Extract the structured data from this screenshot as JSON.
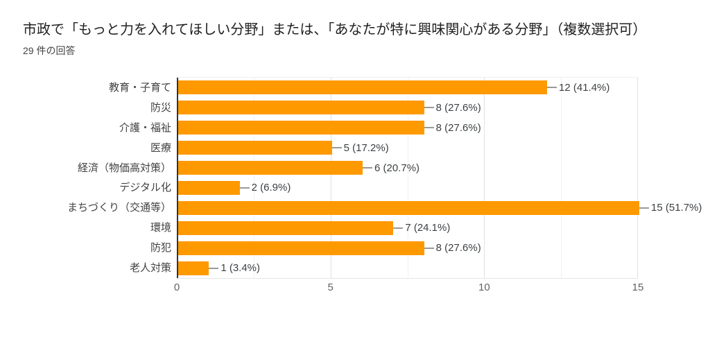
{
  "header": {
    "title": "市政で「もっと力を入れてほしい分野」または、「あなたが特に興味関心がある分野」（複数選択可）",
    "subtitle": "29 件の回答"
  },
  "chart_data": {
    "type": "bar",
    "orientation": "horizontal",
    "title": "市政で「もっと力を入れてほしい分野」または、「あなたが特に興味関心がある分野」（複数選択可）",
    "subtitle": "29 件の回答",
    "total_responses": 29,
    "categories": [
      "教育・子育て",
      "防災",
      "介護・福祉",
      "医療",
      "経済（物価高対策）",
      "デジタル化",
      "まちづくり（交通等）",
      "環境",
      "防犯",
      "老人対策"
    ],
    "values": [
      12,
      8,
      8,
      5,
      6,
      2,
      15,
      7,
      8,
      1
    ],
    "value_labels": [
      "12 (41.4%)",
      "8 (27.6%)",
      "8 (27.6%)",
      "5 (17.2%)",
      "6 (20.7%)",
      "2 (6.9%)",
      "15 (51.7%)",
      "7 (24.1%)",
      "8 (27.6%)",
      "1 (3.4%)"
    ],
    "xlim": [
      0,
      15
    ],
    "x_ticks": [
      0,
      5,
      10,
      15
    ],
    "minor_gridlines": [
      2.5,
      7.5,
      12.5
    ],
    "grid": true,
    "legend": "none",
    "colors": {
      "bar": "#FF9900",
      "title_text": "#212121",
      "subtitle_text": "#424242",
      "category_text": "#424242",
      "value_text": "#3c4043",
      "tick_text": "#616161",
      "axis_line": "#333333",
      "major_gridline": "#e0e0e0",
      "minor_gridline": "#f0f0f0",
      "callout_line": "#999999",
      "background": "#ffffff"
    }
  }
}
